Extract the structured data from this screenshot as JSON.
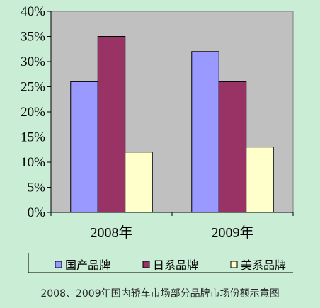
{
  "chart_data": {
    "type": "bar",
    "categories": [
      "2008年",
      "2009年"
    ],
    "series": [
      {
        "name": "国产品牌",
        "values": [
          26,
          32
        ],
        "color": "#9999ff"
      },
      {
        "name": "日系品牌",
        "values": [
          35,
          26
        ],
        "color": "#993366"
      },
      {
        "name": "美系品牌",
        "values": [
          12,
          13
        ],
        "color": "#ffffcc"
      }
    ],
    "ylim": [
      0,
      40
    ],
    "y_ticks": [
      "0%",
      "5%",
      "10%",
      "15%",
      "20%",
      "25%",
      "30%",
      "35%",
      "40%"
    ],
    "plot_background": "#c0c0c0",
    "grid": false,
    "legend_position": "bottom",
    "caption": "2008、2009年国内轿车市场部分品牌市场份额示意图"
  }
}
